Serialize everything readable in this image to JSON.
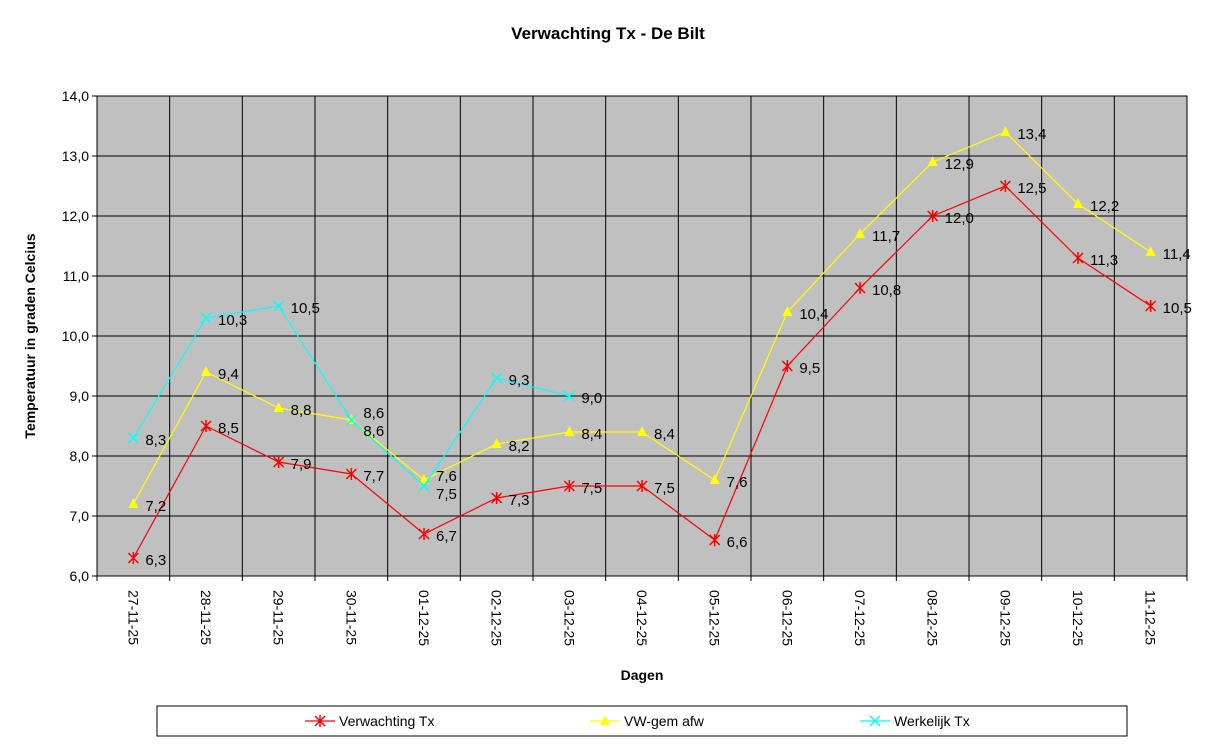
{
  "chart_data": {
    "type": "line",
    "title": "Verwachting Tx - De Bilt",
    "xlabel": "Dagen",
    "ylabel": "Temperatuur in graden Celcius",
    "ylim": [
      6.0,
      14.0
    ],
    "ytick_step": 1.0,
    "grid": true,
    "legend_position": "bottom",
    "plot_background": "#c0c0c0",
    "categories": [
      "27-11-25",
      "28-11-25",
      "29-11-25",
      "30-11-25",
      "01-12-25",
      "02-12-25",
      "03-12-25",
      "04-12-25",
      "05-12-25",
      "06-12-25",
      "07-12-25",
      "08-12-25",
      "09-12-25",
      "10-12-25",
      "11-12-25"
    ],
    "series": [
      {
        "name": "Verwachting Tx",
        "color": "#ff0000",
        "marker": "asterisk",
        "values": [
          6.3,
          8.5,
          7.9,
          7.7,
          6.7,
          7.3,
          7.5,
          7.5,
          6.6,
          9.5,
          10.8,
          12.0,
          12.5,
          11.3,
          10.5
        ]
      },
      {
        "name": "VW-gem afw",
        "color": "#ffff00",
        "marker": "triangle",
        "values": [
          7.2,
          9.4,
          8.8,
          8.6,
          7.6,
          8.2,
          8.4,
          8.4,
          7.6,
          10.4,
          11.7,
          12.9,
          13.4,
          12.2,
          11.4
        ]
      },
      {
        "name": "Werkelijk Tx",
        "color": "#00ffff",
        "marker": "x",
        "values": [
          8.3,
          10.3,
          10.5,
          8.6,
          7.5,
          9.3,
          9.0,
          null,
          null,
          null,
          null,
          null,
          null,
          null,
          null
        ]
      }
    ]
  }
}
